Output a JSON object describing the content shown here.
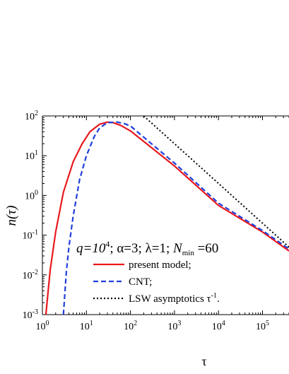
{
  "chart_data": {
    "type": "line",
    "x_scale": "log",
    "y_scale": "log",
    "xlim": [
      1,
      400000
    ],
    "ylim": [
      0.001,
      100
    ],
    "xlabel": "τ",
    "ylabel": "n(τ)",
    "grid": false,
    "x_ticks": [
      {
        "value": 1,
        "base": "10",
        "exp": "0"
      },
      {
        "value": 10,
        "base": "10",
        "exp": "1"
      },
      {
        "value": 100,
        "base": "10",
        "exp": "2"
      },
      {
        "value": 1000,
        "base": "10",
        "exp": "3"
      },
      {
        "value": 10000,
        "base": "10",
        "exp": "4"
      },
      {
        "value": 100000,
        "base": "10",
        "exp": "5"
      }
    ],
    "y_ticks": [
      {
        "value": 0.001,
        "base": "10",
        "exp": "-3"
      },
      {
        "value": 0.01,
        "base": "10",
        "exp": "-2"
      },
      {
        "value": 0.1,
        "base": "10",
        "exp": "-1"
      },
      {
        "value": 1,
        "base": "10",
        "exp": "0"
      },
      {
        "value": 10,
        "base": "10",
        "exp": "1"
      },
      {
        "value": 100,
        "base": "10",
        "exp": "2"
      }
    ],
    "annotation": {
      "q_base": "q=10",
      "q_exp": "4",
      "rest": "; α=3; λ=1; ",
      "n_var": "N",
      "n_sub": "min",
      "n_val": " =60"
    },
    "series": [
      {
        "name": "present model;",
        "color": "#e8191e",
        "dash": "solid",
        "x": [
          1.2,
          1.5,
          2,
          3,
          5,
          8,
          12,
          20,
          30,
          40,
          60,
          100,
          300,
          1000,
          10000,
          100000,
          400000
        ],
        "y": [
          0.001,
          0.013,
          0.12,
          1.2,
          7,
          20,
          40,
          62,
          70,
          68,
          58,
          42,
          16,
          5.5,
          0.56,
          0.12,
          0.04
        ]
      },
      {
        "name": "CNT;",
        "color": "#1f3fdc",
        "dash": "dashed",
        "x": [
          3,
          3.5,
          4,
          5,
          7,
          10,
          15,
          20,
          30,
          50,
          70,
          100,
          300,
          1000,
          10000,
          100000,
          400000
        ],
        "y": [
          0.001,
          0.012,
          0.05,
          0.3,
          2.5,
          10,
          30,
          50,
          68,
          70,
          65,
          56,
          20,
          6.5,
          0.64,
          0.13,
          0.045
        ]
      },
      {
        "name": "LSW asymptotics τ",
        "name_sup": "-1",
        "name_tail": ".",
        "color": "#000000",
        "dash": "dotted",
        "x": [
          200,
          400000
        ],
        "y": [
          100,
          0.05
        ]
      }
    ]
  }
}
